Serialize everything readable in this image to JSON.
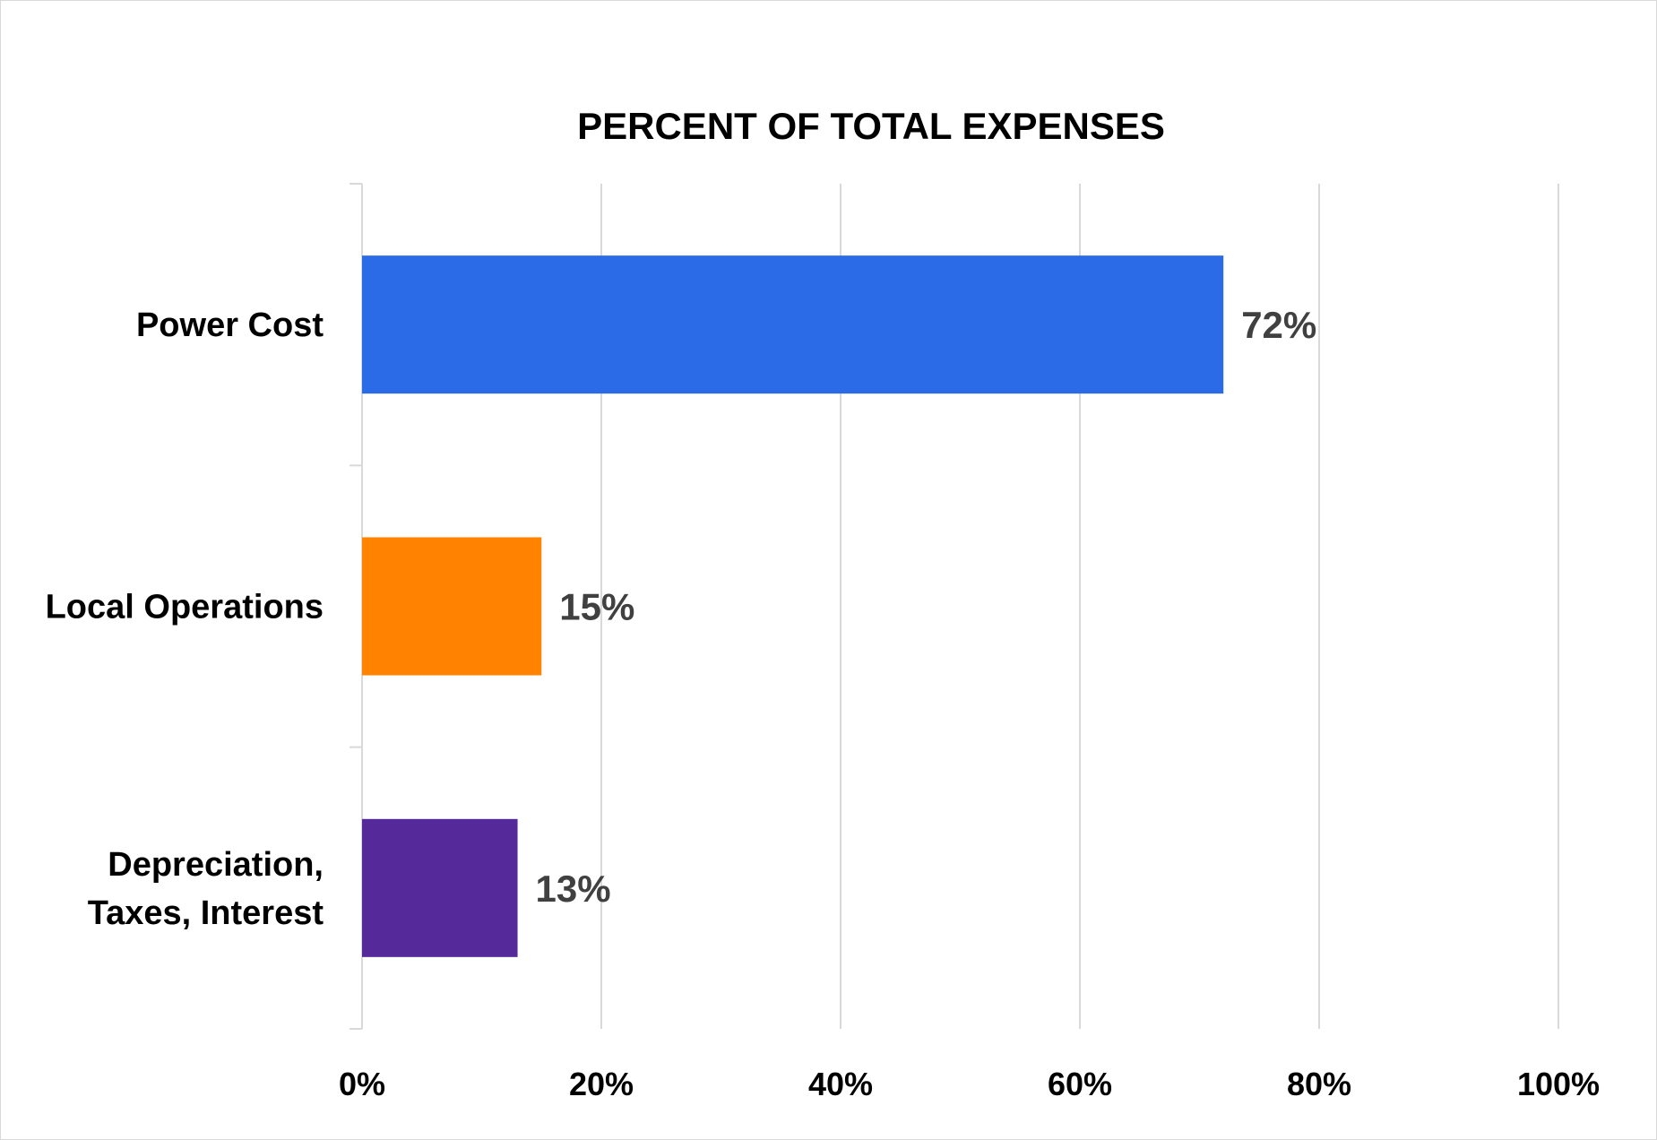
{
  "chart_data": {
    "type": "bar",
    "orientation": "horizontal",
    "title": "PERCENT OF TOTAL EXPENSES",
    "categories": [
      "Power Cost",
      "Local Operations",
      "Depreciation, Taxes, Interest"
    ],
    "category_lines": [
      [
        "Power Cost"
      ],
      [
        "Local Operations"
      ],
      [
        "Depreciation,",
        "Taxes, Interest"
      ]
    ],
    "values": [
      72,
      15,
      13
    ],
    "data_labels": [
      "72%",
      "15%",
      "13%"
    ],
    "colors": [
      "#2B6BE8",
      "#FF8300",
      "#55299A"
    ],
    "xlim": [
      0,
      100
    ],
    "x_ticks": [
      0,
      20,
      40,
      60,
      80,
      100
    ],
    "x_tick_labels": [
      "0%",
      "20%",
      "40%",
      "60%",
      "80%",
      "100%"
    ],
    "grid": true,
    "legend": "none"
  }
}
